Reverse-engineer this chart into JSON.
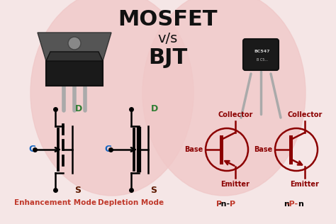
{
  "bg_color": "#f5e6e6",
  "title_line1": "MOSFET",
  "title_line2": "v/s",
  "title_line3": "BJT",
  "title_color": "#111111",
  "label_enhancement": "Enhancement Mode",
  "label_depletion": "Depletion Mode",
  "label_color_red": "#c0392b",
  "label_color_green": "#2e7d32",
  "label_color_blue": "#1565c0",
  "label_color_dark": "#5d1a00",
  "bjt_color": "#8B0000",
  "circle_fill": "#f0c8c8",
  "mosfet_body": "#1a1a1a",
  "mosfet_tab": "#555555",
  "mosfet_lead": "#aaaaaa",
  "bjt_body": "#1a1a1a",
  "bjt_lead": "#aaaaaa"
}
